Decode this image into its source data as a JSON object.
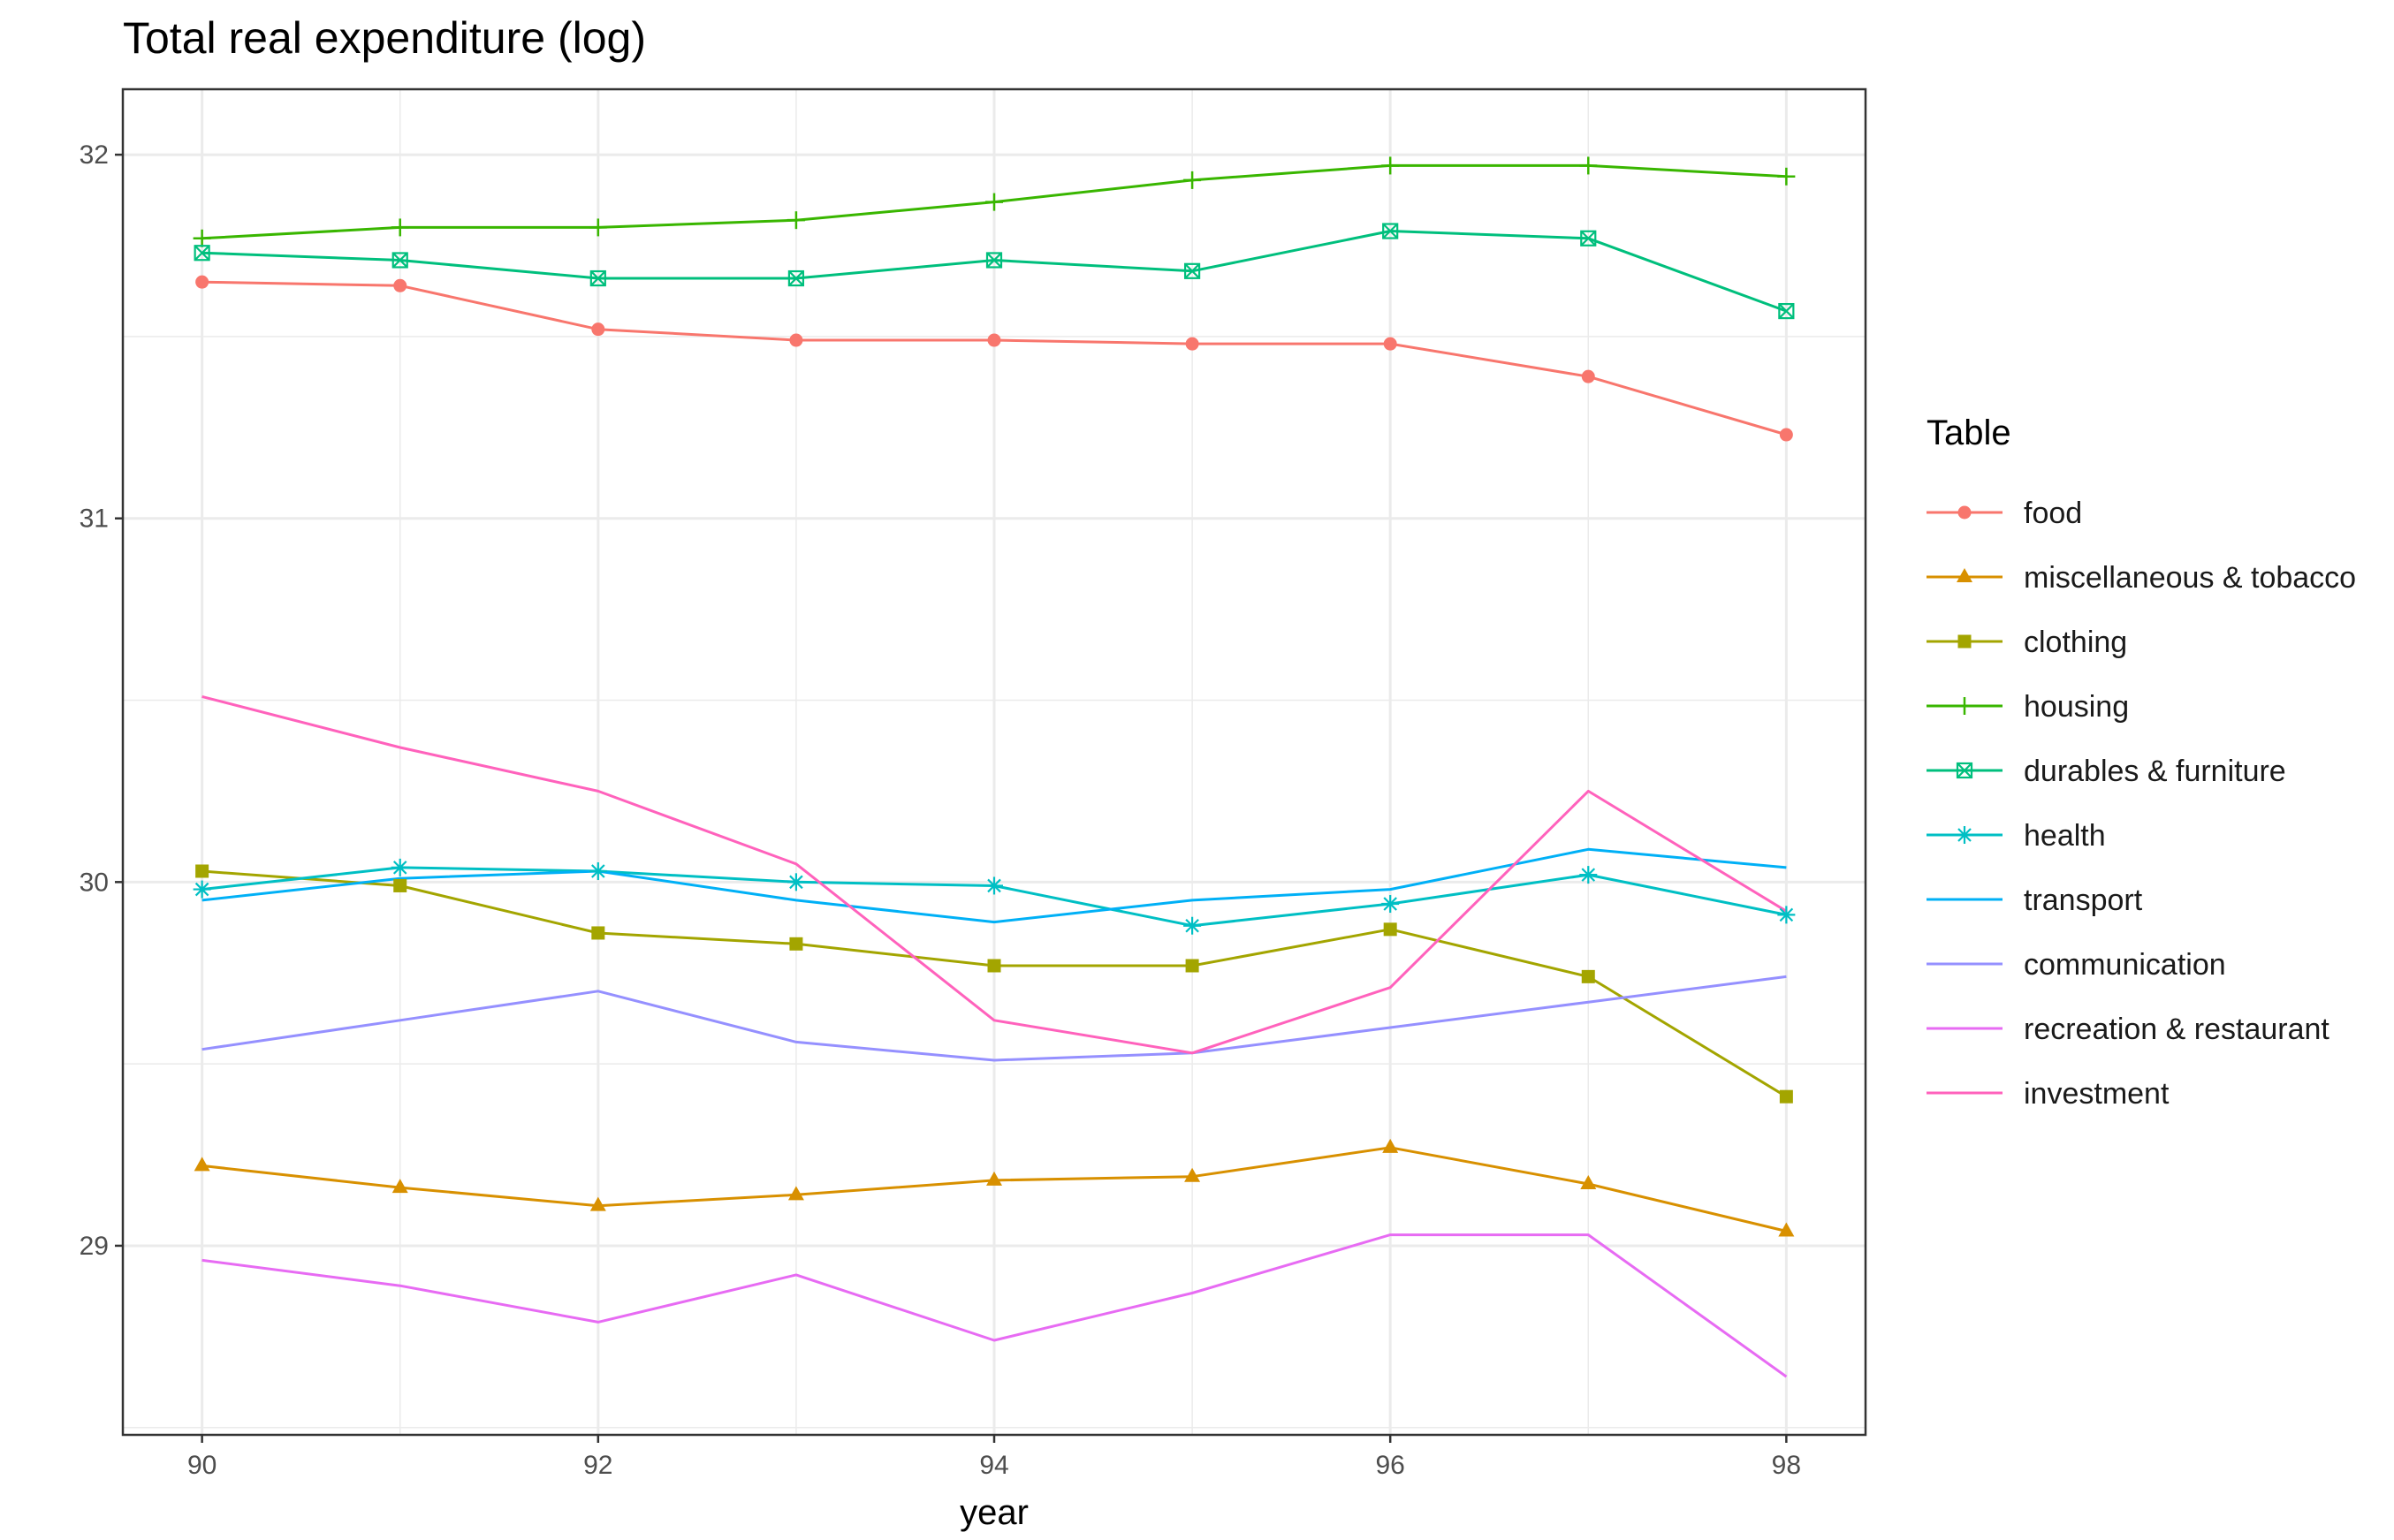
{
  "chart_data": {
    "type": "line",
    "title": "Total real expenditure (log)",
    "xlabel": "year",
    "ylabel": "",
    "xlim": [
      89.6,
      98.4
    ],
    "ylim": [
      28.48,
      32.18
    ],
    "x_ticks": [
      90,
      92,
      94,
      96,
      98
    ],
    "y_ticks": [
      29,
      30,
      31,
      32
    ],
    "grid": true,
    "legend": {
      "title": "Table",
      "position": "right"
    },
    "x": [
      90,
      91,
      92,
      93,
      94,
      95,
      96,
      97,
      98
    ],
    "series": [
      {
        "name": "food",
        "color": "#F8766D",
        "marker": "circle",
        "values": [
          31.65,
          31.64,
          31.52,
          31.49,
          31.49,
          31.48,
          31.48,
          31.39,
          31.23
        ]
      },
      {
        "name": "miscellaneous & tobacco",
        "color": "#D89000",
        "marker": "triangle",
        "values": [
          29.22,
          29.16,
          29.11,
          29.14,
          29.18,
          29.19,
          29.27,
          29.17,
          29.04
        ]
      },
      {
        "name": "clothing",
        "color": "#A3A500",
        "marker": "square",
        "values": [
          30.03,
          29.99,
          29.86,
          29.83,
          29.77,
          29.77,
          29.87,
          29.74,
          29.41
        ]
      },
      {
        "name": "housing",
        "color": "#39B600",
        "marker": "plus",
        "values": [
          31.77,
          31.8,
          31.8,
          31.82,
          31.87,
          31.93,
          31.97,
          31.97,
          31.94
        ]
      },
      {
        "name": "durables & furniture",
        "color": "#00BF7D",
        "marker": "square-x",
        "values": [
          31.73,
          31.71,
          31.66,
          31.66,
          31.71,
          31.68,
          31.79,
          31.77,
          31.57
        ]
      },
      {
        "name": "health",
        "color": "#00BFC4",
        "marker": "asterisk",
        "values": [
          29.98,
          30.04,
          30.03,
          30.0,
          29.99,
          29.88,
          29.94,
          30.02,
          29.91
        ]
      },
      {
        "name": "transport",
        "color": "#00B0F6",
        "marker": "none",
        "values": [
          29.95,
          30.01,
          30.03,
          29.95,
          29.89,
          29.95,
          29.98,
          30.09,
          30.04
        ]
      },
      {
        "name": "communication",
        "color": "#9590FF",
        "marker": "none",
        "values": [
          29.54,
          29.62,
          29.7,
          29.56,
          29.51,
          29.53,
          29.6,
          29.67,
          29.74
        ]
      },
      {
        "name": "recreation & restaurant",
        "color": "#E76BF3",
        "marker": "none",
        "values": [
          28.96,
          28.89,
          28.79,
          28.92,
          28.74,
          28.87,
          29.03,
          29.03,
          28.64
        ]
      },
      {
        "name": "investment",
        "color": "#FF62BC",
        "marker": "none",
        "values": [
          30.51,
          30.37,
          30.25,
          30.05,
          29.62,
          29.53,
          29.71,
          30.25,
          29.92
        ]
      }
    ]
  }
}
